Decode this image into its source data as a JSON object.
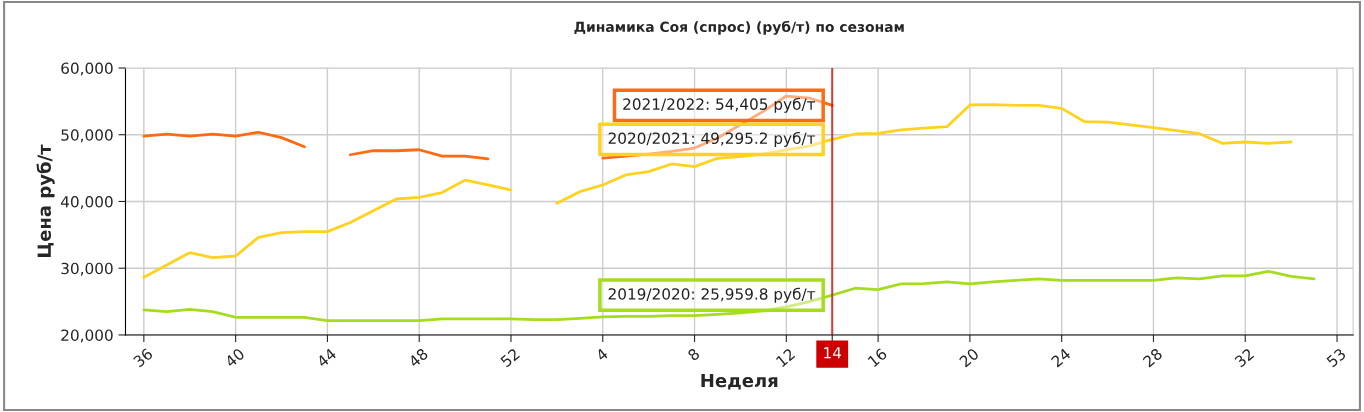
{
  "chart_data": {
    "type": "line",
    "title": "Динамика Соя (спрос) (руб/т) по сезонам",
    "xlabel": "Неделя",
    "ylabel": "Цена руб/т",
    "categories": [
      "36",
      null,
      null,
      null,
      "40",
      null,
      null,
      null,
      "44",
      null,
      null,
      null,
      "48",
      null,
      null,
      null,
      "52",
      null,
      null,
      null,
      "4",
      null,
      null,
      null,
      "8",
      null,
      null,
      null,
      "12",
      null,
      "14",
      null,
      "16",
      null,
      null,
      null,
      "20",
      null,
      null,
      null,
      "24",
      null,
      null,
      null,
      "28",
      null,
      null,
      null,
      "32",
      null,
      null,
      null,
      "53"
    ],
    "series": [
      {
        "color": "#ff6a13",
        "values": [
          49800,
          50100,
          49800,
          50100,
          49800,
          50370,
          49560,
          48200,
          null,
          47000,
          47600,
          47600,
          47750,
          46800,
          46800,
          46370,
          null,
          null,
          null,
          null,
          46500,
          46800,
          47100,
          47500,
          48000,
          49500,
          51500,
          53500,
          55800,
          55500,
          54405,
          null,
          null,
          null,
          null,
          null,
          null,
          null,
          null,
          null,
          null,
          null,
          null,
          null,
          null,
          null,
          null,
          null,
          null,
          null,
          null,
          null,
          null
        ]
      },
      {
        "color": "#ffd21f",
        "values": [
          28640,
          30490,
          32330,
          31580,
          31830,
          34630,
          35330,
          35480,
          35480,
          36850,
          38620,
          40370,
          40620,
          41330,
          43200,
          42470,
          41720,
          null,
          39730,
          41470,
          42470,
          43970,
          44470,
          45620,
          45220,
          46470,
          46720,
          47100,
          47720,
          48310,
          49295.2,
          50110,
          50200,
          50710,
          51000,
          51200,
          54460,
          54500,
          54400,
          54400,
          53950,
          51950,
          51900,
          51460,
          51060,
          50600,
          50160,
          48710,
          48910,
          48710,
          48910,
          null,
          null
        ]
      },
      {
        "color": "#a6dc1e",
        "values": [
          23750,
          23500,
          23840,
          23500,
          22650,
          22650,
          22650,
          22650,
          22150,
          22150,
          22150,
          22150,
          22150,
          22400,
          22400,
          22400,
          22400,
          22300,
          22300,
          22500,
          22700,
          22800,
          22800,
          22900,
          22900,
          23100,
          23300,
          23600,
          24200,
          25000,
          25959.8,
          27000,
          26800,
          27640,
          27700,
          27940,
          27640,
          27940,
          28190,
          28400,
          28190,
          28190,
          28190,
          28190,
          28190,
          28540,
          28400,
          28840,
          28840,
          29540,
          28780,
          28390,
          null
        ]
      }
    ],
    "ylim": [
      20000,
      60000
    ],
    "yticks": [
      {
        "value": 20000,
        "label": "20,000"
      },
      {
        "value": 30000,
        "label": "30,000"
      },
      {
        "value": 40000,
        "label": "40,000"
      },
      {
        "value": 50000,
        "label": "50,000"
      },
      {
        "value": 60000,
        "label": "60,000"
      }
    ],
    "grid": true,
    "ref_lines": [
      {
        "axis": "x",
        "value": "14",
        "color": "#cc0000"
      }
    ],
    "annotations": [
      {
        "text": "2021/2022: 54,405 руб/т",
        "x": "14",
        "y": 54405
      },
      {
        "text": "2020/2021: 49,295.2 руб/т",
        "x": "14",
        "y": 49295.2
      },
      {
        "text": "2019/2020: 25,959.8 руб/т",
        "x": "14",
        "y": 25959.8
      }
    ]
  }
}
